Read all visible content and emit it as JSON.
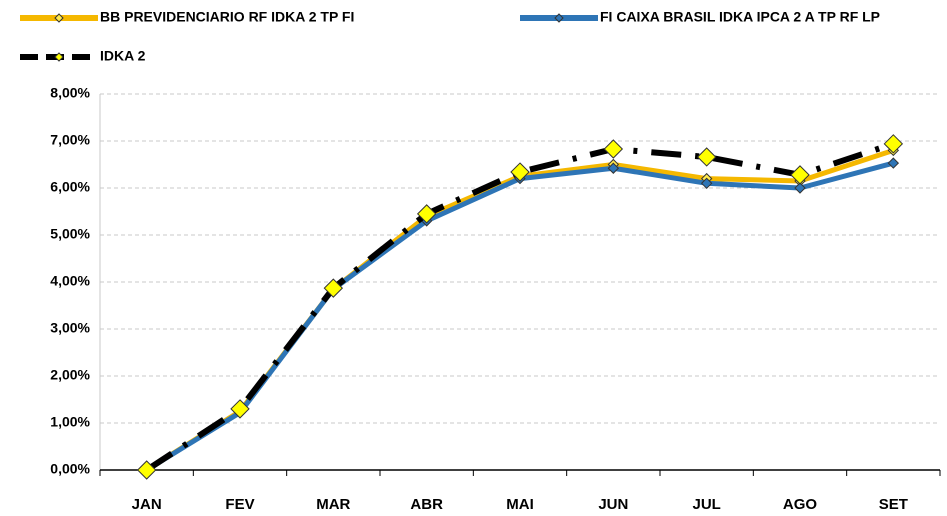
{
  "chart_data": {
    "type": "line",
    "categories": [
      "JAN",
      "FEV",
      "MAR",
      "ABR",
      "MAI",
      "JUN",
      "JUL",
      "AGO",
      "SET"
    ],
    "series": [
      {
        "name": "BB PREVIDENCIARIO RF IDKA 2 TP FI",
        "color": "#f5b800",
        "marker_color": "#ffe94d",
        "dashed": false,
        "values": [
          0.0,
          1.25,
          3.85,
          5.4,
          6.25,
          6.5,
          6.2,
          6.15,
          6.8
        ]
      },
      {
        "name": "FI CAIXA BRASIL IDKA IPCA 2 A TP RF LP",
        "color": "#2e75b6",
        "marker_color": "#2e75b6",
        "dashed": false,
        "values": [
          0.0,
          1.22,
          3.85,
          5.3,
          6.2,
          6.42,
          6.1,
          6.0,
          6.53
        ]
      },
      {
        "name": "IDKA 2",
        "color": "#000000",
        "marker_color": "#ffff00",
        "dashed": true,
        "values": [
          0.0,
          1.3,
          3.87,
          5.45,
          6.34,
          6.83,
          6.66,
          6.28,
          6.94
        ]
      }
    ],
    "ylim": [
      0,
      8
    ],
    "yticks": [
      {
        "value": 0,
        "label": "0,00%"
      },
      {
        "value": 1,
        "label": "1,00%"
      },
      {
        "value": 2,
        "label": "2,00%"
      },
      {
        "value": 3,
        "label": "3,00%"
      },
      {
        "value": 4,
        "label": "4,00%"
      },
      {
        "value": 5,
        "label": "5,00%"
      },
      {
        "value": 6,
        "label": "6,00%"
      },
      {
        "value": 7,
        "label": "7,00%"
      },
      {
        "value": 8,
        "label": "8,00%"
      }
    ],
    "grid": true
  }
}
